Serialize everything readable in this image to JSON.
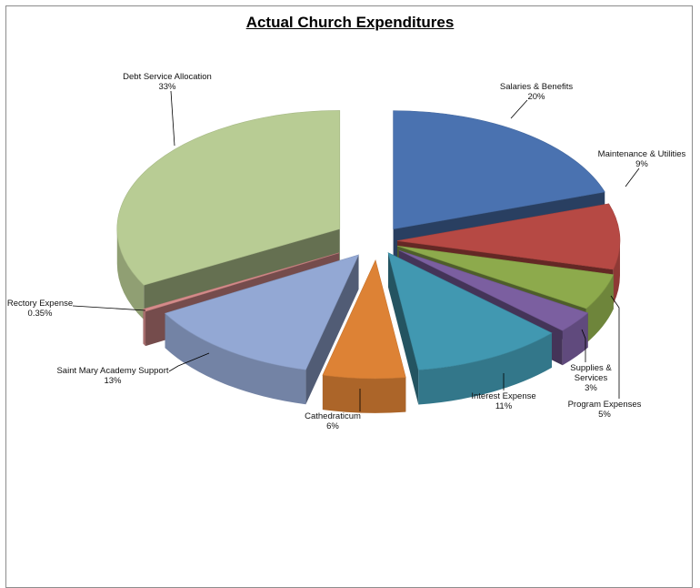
{
  "chart_data": {
    "type": "pie",
    "style": "3d-exploded",
    "title": "Actual Church Expenditures",
    "slices": [
      {
        "name": "Salaries & Benefits",
        "pct_label": "20%",
        "value": 20,
        "color": "#4a72b0"
      },
      {
        "name": "Maintenance & Utilities",
        "pct_label": "9%",
        "value": 9,
        "color": "#b64944"
      },
      {
        "name": "Program Expenses",
        "pct_label": "5%",
        "value": 5,
        "color": "#8daa4c"
      },
      {
        "name": "Supplies & Services",
        "pct_label": "3%",
        "value": 3,
        "color": "#7b5fa0"
      },
      {
        "name": "Interest Expense",
        "pct_label": "11%",
        "value": 11,
        "color": "#4198b1"
      },
      {
        "name": "Cathedraticum",
        "pct_label": "6%",
        "value": 6,
        "color": "#dd8235"
      },
      {
        "name": "Saint Mary Academy Support",
        "pct_label": "13%",
        "value": 13,
        "color": "#93a8d4"
      },
      {
        "name": "Rectory Expense",
        "pct_label": "0.35%",
        "value": 0.35,
        "color": "#d58b8a"
      },
      {
        "name": "Debt Service Allocation",
        "pct_label": "33%",
        "value": 33,
        "color": "#b8cc94"
      }
    ],
    "legend": "none"
  }
}
